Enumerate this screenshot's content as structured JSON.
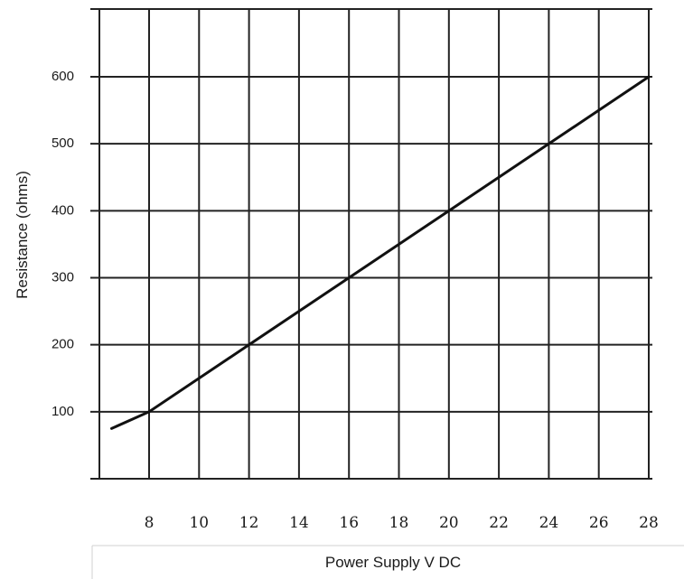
{
  "chart_data": {
    "type": "line",
    "xlabel": "Power Supply V DC",
    "ylabel": "Resistance (ohms)",
    "x_ticks": [
      "8",
      "10",
      "12",
      "14",
      "16",
      "18",
      "20",
      "22",
      "24",
      "26",
      "28"
    ],
    "y_ticks": [
      "100",
      "200",
      "300",
      "400",
      "500",
      "600"
    ],
    "xlim": [
      6,
      28
    ],
    "ylim": [
      0,
      700
    ],
    "grid": true,
    "series": [
      {
        "x": [
          6.5,
          8,
          12,
          16,
          20,
          24,
          28
        ],
        "y": [
          75,
          100,
          200,
          300,
          400,
          500,
          600
        ]
      }
    ]
  }
}
